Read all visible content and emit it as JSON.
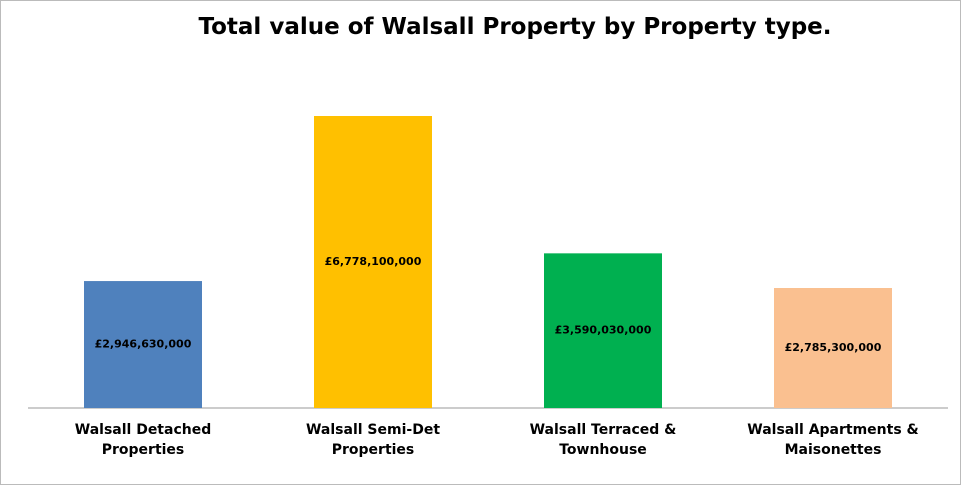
{
  "chart_data": {
    "type": "bar",
    "title": "Total value of Walsall Property by Property type.",
    "categories": [
      "Walsall Detached Properties",
      "Walsall Semi-Det Properties",
      "Walsall Terraced & Townhouse",
      "Walsall Apartments & Maisonettes"
    ],
    "values": [
      2946630000,
      6778100000,
      3590030000,
      2785300000
    ],
    "value_labels": [
      "£2,946,630,000",
      "£6,778,100,000",
      "£3,590,030,000",
      "£2,785,300,000"
    ],
    "colors": [
      "#4f81bd",
      "#ffc000",
      "#00b050",
      "#fac090"
    ]
  }
}
